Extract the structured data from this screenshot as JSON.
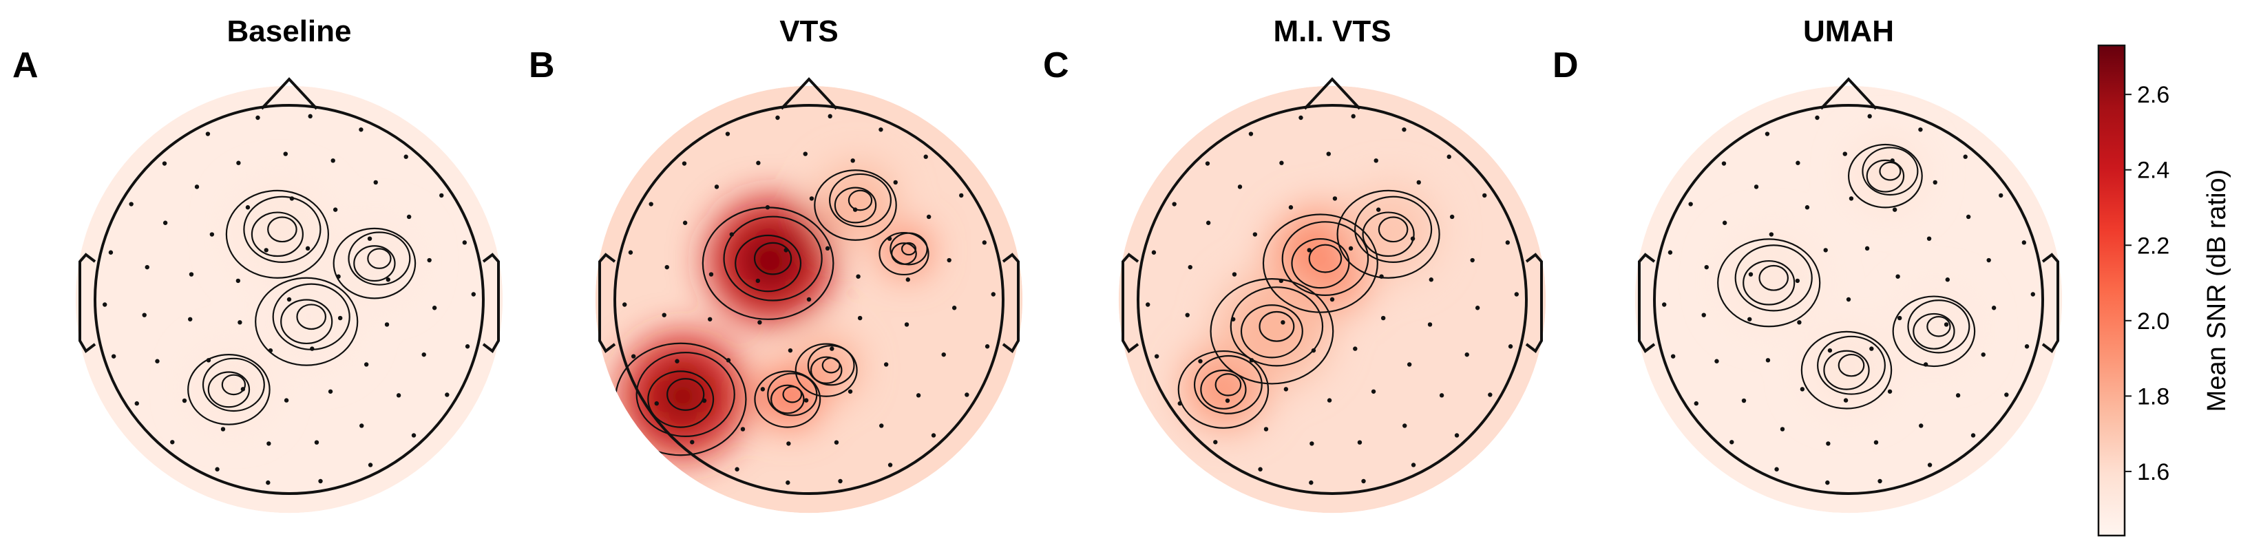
{
  "chart_data": {
    "type": "heatmap",
    "colorbar": {
      "label": "Mean SNR (dB ratio)",
      "ticks": [
        1.6,
        1.8,
        2.0,
        2.2,
        2.4,
        2.6
      ],
      "tick_labels": [
        "1.6",
        "1.8",
        "2.0",
        "2.2",
        "2.4",
        "2.6"
      ],
      "range": [
        1.43,
        2.73
      ],
      "colormap": "Reds"
    },
    "panels": [
      {
        "letter": "A",
        "title": "Baseline",
        "sensor_count": 64,
        "blobs": [
          {
            "cx": -0.05,
            "cy": -0.35,
            "value": 1.54,
            "r": 0.25
          },
          {
            "cx": 0.45,
            "cy": -0.2,
            "value": 1.53,
            "r": 0.2
          },
          {
            "cx": -0.3,
            "cy": 0.45,
            "value": 1.54,
            "r": 0.2
          },
          {
            "cx": 0.1,
            "cy": 0.1,
            "value": 1.52,
            "r": 0.25
          }
        ],
        "base": 1.5
      },
      {
        "letter": "B",
        "title": "VTS",
        "sensor_count": 64,
        "blobs": [
          {
            "cx": -0.2,
            "cy": -0.2,
            "value": 2.75,
            "r": 0.32
          },
          {
            "cx": -0.65,
            "cy": 0.5,
            "value": 2.7,
            "r": 0.32
          },
          {
            "cx": 0.5,
            "cy": -0.25,
            "value": 2.1,
            "r": 0.12
          },
          {
            "cx": -0.1,
            "cy": 0.5,
            "value": 2.15,
            "r": 0.16
          },
          {
            "cx": 0.1,
            "cy": 0.35,
            "value": 1.9,
            "r": 0.15
          },
          {
            "cx": 0.25,
            "cy": -0.5,
            "value": 1.8,
            "r": 0.2
          }
        ],
        "base": 1.62
      },
      {
        "letter": "C",
        "title": "M.I. VTS",
        "sensor_count": 64,
        "blobs": [
          {
            "cx": -0.05,
            "cy": -0.2,
            "value": 2.0,
            "r": 0.28
          },
          {
            "cx": -0.55,
            "cy": 0.45,
            "value": 1.95,
            "r": 0.22
          },
          {
            "cx": -0.3,
            "cy": 0.15,
            "value": 1.8,
            "r": 0.3
          },
          {
            "cx": 0.3,
            "cy": -0.35,
            "value": 1.72,
            "r": 0.25
          }
        ],
        "base": 1.6
      },
      {
        "letter": "D",
        "title": "UMAH",
        "sensor_count": 64,
        "blobs": [
          {
            "cx": 0.2,
            "cy": -0.65,
            "value": 1.58,
            "r": 0.18
          },
          {
            "cx": -0.4,
            "cy": -0.1,
            "value": 1.54,
            "r": 0.25
          },
          {
            "cx": 0.0,
            "cy": 0.35,
            "value": 1.55,
            "r": 0.22
          },
          {
            "cx": 0.45,
            "cy": 0.15,
            "value": 1.53,
            "r": 0.2
          }
        ],
        "base": 1.5
      }
    ]
  }
}
